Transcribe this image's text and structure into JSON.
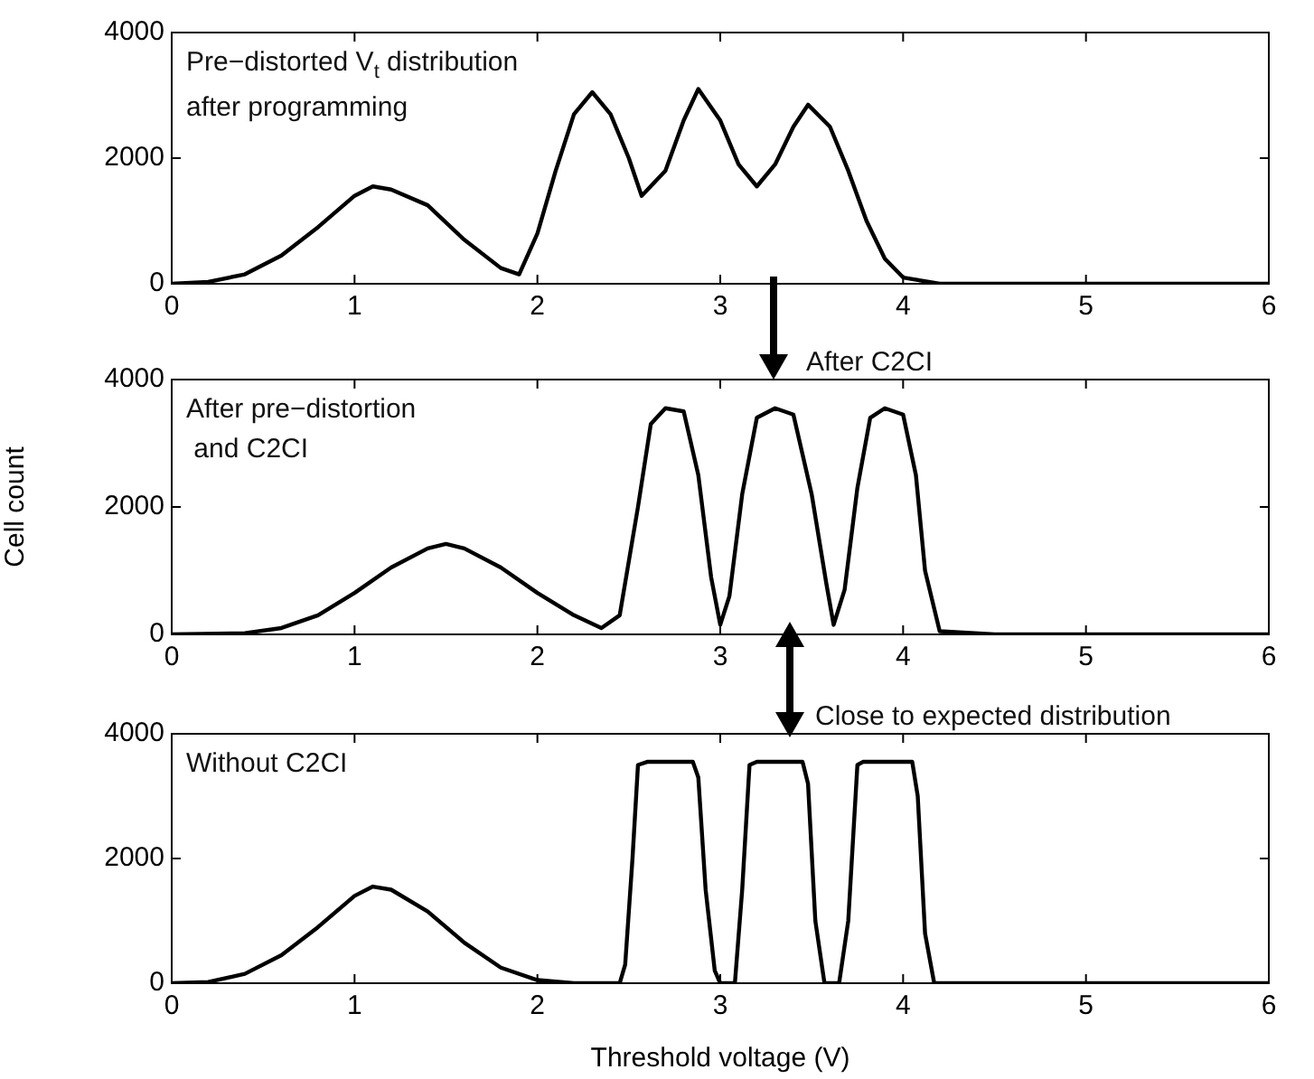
{
  "chart_data": [
    {
      "type": "line",
      "annotations": [
        "Pre−distorted V$_{t}$ distribution\nafter programming"
      ],
      "xlim": [
        0,
        6
      ],
      "xticks": [
        0,
        1,
        2,
        3,
        4,
        5,
        6
      ],
      "ylim": [
        0,
        4000
      ],
      "yticks": [
        0,
        2000,
        4000
      ],
      "grid": false,
      "legend": false,
      "marker": "none",
      "line_style": "solid",
      "series": [
        {
          "color": "#000000",
          "x": [
            0,
            0.2,
            0.4,
            0.6,
            0.8,
            1.0,
            1.1,
            1.2,
            1.4,
            1.6,
            1.8,
            1.9,
            2.0,
            2.1,
            2.2,
            2.3,
            2.4,
            2.5,
            2.57,
            2.7,
            2.8,
            2.88,
            3.0,
            3.1,
            3.2,
            3.3,
            3.4,
            3.48,
            3.6,
            3.7,
            3.8,
            3.9,
            4.0,
            4.2,
            6
          ],
          "values": [
            0,
            30,
            150,
            450,
            900,
            1400,
            1550,
            1500,
            1250,
            700,
            250,
            150,
            800,
            1800,
            2700,
            3050,
            2700,
            2000,
            1400,
            1800,
            2600,
            3100,
            2600,
            1900,
            1550,
            1900,
            2500,
            2850,
            2500,
            1800,
            1000,
            400,
            100,
            0,
            0
          ]
        }
      ]
    },
    {
      "type": "line",
      "ylabel": "Cell count",
      "annotations": [
        "After pre−distortion\n and C2CI",
        "After C2CI"
      ],
      "xlim": [
        0,
        6
      ],
      "xticks": [
        0,
        1,
        2,
        3,
        4,
        5,
        6
      ],
      "ylim": [
        0,
        4000
      ],
      "yticks": [
        0,
        2000,
        4000
      ],
      "grid": false,
      "legend": false,
      "marker": "none",
      "line_style": "solid",
      "series": [
        {
          "color": "#000000",
          "x": [
            0,
            0.4,
            0.6,
            0.8,
            1.0,
            1.2,
            1.4,
            1.5,
            1.6,
            1.8,
            2.0,
            2.2,
            2.35,
            2.45,
            2.55,
            2.62,
            2.7,
            2.8,
            2.88,
            2.95,
            3.0,
            3.05,
            3.12,
            3.2,
            3.3,
            3.4,
            3.5,
            3.58,
            3.62,
            3.68,
            3.75,
            3.82,
            3.9,
            4.0,
            4.07,
            4.12,
            4.2,
            4.5,
            6
          ],
          "values": [
            0,
            20,
            100,
            300,
            650,
            1050,
            1350,
            1420,
            1350,
            1050,
            650,
            300,
            100,
            300,
            2000,
            3300,
            3550,
            3500,
            2500,
            900,
            150,
            600,
            2200,
            3400,
            3550,
            3450,
            2200,
            800,
            150,
            700,
            2300,
            3400,
            3550,
            3450,
            2500,
            1000,
            50,
            0,
            0
          ]
        }
      ]
    },
    {
      "type": "line",
      "xlabel": "Threshold voltage (V)",
      "annotations": [
        "Without C2CI",
        "Close to expected distribution"
      ],
      "xlim": [
        0,
        6
      ],
      "xticks": [
        0,
        1,
        2,
        3,
        4,
        5,
        6
      ],
      "ylim": [
        0,
        4000
      ],
      "yticks": [
        0,
        2000,
        4000
      ],
      "grid": false,
      "legend": false,
      "marker": "none",
      "line_style": "solid",
      "series": [
        {
          "color": "#000000",
          "x": [
            0,
            0.2,
            0.4,
            0.6,
            0.8,
            1.0,
            1.1,
            1.2,
            1.4,
            1.6,
            1.8,
            2.0,
            2.2,
            2.45,
            2.48,
            2.52,
            2.55,
            2.6,
            2.85,
            2.88,
            2.92,
            2.97,
            3.0,
            3.08,
            3.12,
            3.16,
            3.2,
            3.45,
            3.48,
            3.52,
            3.57,
            3.65,
            3.7,
            3.75,
            3.78,
            4.05,
            4.08,
            4.12,
            4.17,
            6
          ],
          "values": [
            0,
            20,
            150,
            450,
            900,
            1400,
            1550,
            1500,
            1150,
            650,
            250,
            50,
            0,
            0,
            300,
            2000,
            3500,
            3550,
            3550,
            3300,
            1500,
            200,
            0,
            0,
            1500,
            3500,
            3550,
            3550,
            3200,
            1000,
            0,
            0,
            1000,
            3500,
            3550,
            3550,
            3000,
            800,
            0,
            0
          ]
        }
      ]
    }
  ]
}
